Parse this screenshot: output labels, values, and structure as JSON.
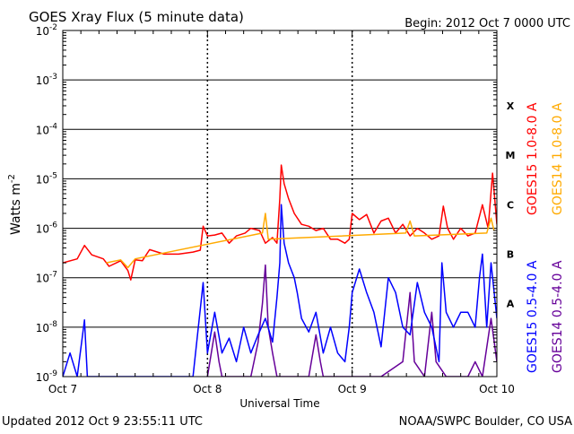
{
  "chart_data": {
    "type": "line",
    "title": "GOES Xray Flux (5 minute data)",
    "begin_label": "Begin:  2012 Oct 7  0000 UTC",
    "xlabel": "Universal Time",
    "ylabel": "Watts m",
    "ylabel_exponent": "-2",
    "y_scale": "log",
    "ylim": [
      1e-09,
      0.01
    ],
    "y_ticks": [
      {
        "mant": "10",
        "exp": "-2",
        "value": 0.01
      },
      {
        "mant": "10",
        "exp": "-3",
        "value": 0.001
      },
      {
        "mant": "10",
        "exp": "-4",
        "value": 0.0001
      },
      {
        "mant": "10",
        "exp": "-5",
        "value": 1e-05
      },
      {
        "mant": "10",
        "exp": "-6",
        "value": 1e-06
      },
      {
        "mant": "10",
        "exp": "-7",
        "value": 1e-07
      },
      {
        "mant": "10",
        "exp": "-8",
        "value": 1e-08
      },
      {
        "mant": "10",
        "exp": "-9",
        "value": 1e-09
      }
    ],
    "x_range_days": [
      0,
      3
    ],
    "x_ticks": [
      {
        "label": "Oct 7",
        "day": 0
      },
      {
        "label": "Oct 8",
        "day": 1
      },
      {
        "label": "Oct 9",
        "day": 2
      },
      {
        "label": "Oct 10",
        "day": 3
      }
    ],
    "flare_classes": [
      {
        "label": "X",
        "value": 0.0003
      },
      {
        "label": "M",
        "value": 3e-05
      },
      {
        "label": "C",
        "value": 3e-06
      },
      {
        "label": "B",
        "value": 3e-07
      },
      {
        "label": "A",
        "value": 3e-08
      }
    ],
    "grid": "horizontal",
    "legend_position": "right",
    "series": [
      {
        "name": "GOES15 1.0-8.0 A",
        "color": "#ff0000",
        "points": [
          [
            0.0,
            2e-07
          ],
          [
            0.1,
            2.4e-07
          ],
          [
            0.15,
            4.5e-07
          ],
          [
            0.2,
            2.9e-07
          ],
          [
            0.28,
            2.4e-07
          ],
          [
            0.32,
            1.7e-07
          ],
          [
            0.4,
            2.2e-07
          ],
          [
            0.45,
            1.4e-07
          ],
          [
            0.47,
            9e-08
          ],
          [
            0.5,
            2.3e-07
          ],
          [
            0.55,
            2.2e-07
          ],
          [
            0.6,
            3.7e-07
          ],
          [
            0.7,
            3e-07
          ],
          [
            0.8,
            3e-07
          ],
          [
            0.9,
            3.3e-07
          ],
          [
            0.95,
            3.6e-07
          ],
          [
            0.97,
            1.1e-06
          ],
          [
            1.0,
            7e-07
          ],
          [
            1.05,
            7.3e-07
          ],
          [
            1.1,
            8e-07
          ],
          [
            1.15,
            5e-07
          ],
          [
            1.2,
            7e-07
          ],
          [
            1.26,
            8e-07
          ],
          [
            1.3,
            1e-06
          ],
          [
            1.36,
            9e-07
          ],
          [
            1.4,
            5e-07
          ],
          [
            1.45,
            6.5e-07
          ],
          [
            1.48,
            5e-07
          ],
          [
            1.5,
            4e-06
          ],
          [
            1.51,
            1.9e-05
          ],
          [
            1.53,
            8e-06
          ],
          [
            1.56,
            4e-06
          ],
          [
            1.6,
            2e-06
          ],
          [
            1.65,
            1.2e-06
          ],
          [
            1.7,
            1.1e-06
          ],
          [
            1.75,
            9e-07
          ],
          [
            1.8,
            1e-06
          ],
          [
            1.85,
            6e-07
          ],
          [
            1.9,
            6e-07
          ],
          [
            1.95,
            5e-07
          ],
          [
            1.98,
            6e-07
          ],
          [
            2.0,
            2e-06
          ],
          [
            2.05,
            1.5e-06
          ],
          [
            2.1,
            1.9e-06
          ],
          [
            2.15,
            8e-07
          ],
          [
            2.2,
            1.4e-06
          ],
          [
            2.25,
            1.6e-06
          ],
          [
            2.3,
            8e-07
          ],
          [
            2.35,
            1.2e-06
          ],
          [
            2.4,
            7e-07
          ],
          [
            2.45,
            1e-06
          ],
          [
            2.5,
            8e-07
          ],
          [
            2.55,
            6e-07
          ],
          [
            2.6,
            7e-07
          ],
          [
            2.63,
            2.8e-06
          ],
          [
            2.66,
            1e-06
          ],
          [
            2.7,
            6e-07
          ],
          [
            2.75,
            1e-06
          ],
          [
            2.8,
            7e-07
          ],
          [
            2.85,
            8e-07
          ],
          [
            2.9,
            3e-06
          ],
          [
            2.94,
            1e-06
          ],
          [
            2.97,
            1.3e-05
          ],
          [
            3.0,
            1.2e-06
          ]
        ]
      },
      {
        "name": "GOES14 1.0-8.0 A",
        "color": "#ffaa00",
        "points": [
          [
            0.3,
            2e-07
          ],
          [
            0.4,
            2.3e-07
          ],
          [
            0.45,
            1.6e-07
          ],
          [
            0.5,
            2.4e-07
          ],
          [
            1.38,
            8e-07
          ],
          [
            1.4,
            2e-06
          ],
          [
            1.42,
            6e-07
          ],
          [
            2.37,
            8e-07
          ],
          [
            2.4,
            1.4e-06
          ],
          [
            2.43,
            7e-07
          ],
          [
            2.93,
            8e-07
          ],
          [
            2.96,
            1.6e-06
          ],
          [
            2.98,
            9e-07
          ]
        ]
      },
      {
        "name": "GOES15 0.5-4.0 A",
        "color": "#0000ff",
        "points": [
          [
            0.0,
            1e-09
          ],
          [
            0.05,
            3e-09
          ],
          [
            0.1,
            1e-09
          ],
          [
            0.15,
            1.4e-08
          ],
          [
            0.17,
            1e-09
          ],
          [
            0.3,
            1e-09
          ],
          [
            0.5,
            1e-09
          ],
          [
            0.7,
            1e-09
          ],
          [
            0.9,
            1e-09
          ],
          [
            0.97,
            8e-08
          ],
          [
            1.0,
            3e-09
          ],
          [
            1.05,
            2e-08
          ],
          [
            1.1,
            3e-09
          ],
          [
            1.15,
            6e-09
          ],
          [
            1.2,
            2e-09
          ],
          [
            1.25,
            1e-08
          ],
          [
            1.3,
            3e-09
          ],
          [
            1.35,
            7e-09
          ],
          [
            1.4,
            1.5e-08
          ],
          [
            1.45,
            5e-09
          ],
          [
            1.48,
            4e-08
          ],
          [
            1.5,
            2e-07
          ],
          [
            1.51,
            3e-06
          ],
          [
            1.53,
            5e-07
          ],
          [
            1.56,
            2e-07
          ],
          [
            1.6,
            1e-07
          ],
          [
            1.62,
            5e-08
          ],
          [
            1.65,
            1.5e-08
          ],
          [
            1.7,
            8e-09
          ],
          [
            1.75,
            2e-08
          ],
          [
            1.8,
            3e-09
          ],
          [
            1.85,
            1e-08
          ],
          [
            1.9,
            3e-09
          ],
          [
            1.95,
            2e-09
          ],
          [
            1.98,
            1e-08
          ],
          [
            2.0,
            5e-08
          ],
          [
            2.05,
            1.5e-07
          ],
          [
            2.1,
            5e-08
          ],
          [
            2.15,
            2e-08
          ],
          [
            2.2,
            4e-09
          ],
          [
            2.25,
            1e-07
          ],
          [
            2.3,
            5e-08
          ],
          [
            2.35,
            1e-08
          ],
          [
            2.4,
            7e-09
          ],
          [
            2.45,
            8e-08
          ],
          [
            2.5,
            2e-08
          ],
          [
            2.55,
            1e-08
          ],
          [
            2.6,
            2e-09
          ],
          [
            2.62,
            2e-07
          ],
          [
            2.65,
            2e-08
          ],
          [
            2.7,
            1e-08
          ],
          [
            2.75,
            2e-08
          ],
          [
            2.8,
            2e-08
          ],
          [
            2.85,
            1e-08
          ],
          [
            2.88,
            1e-07
          ],
          [
            2.9,
            3e-07
          ],
          [
            2.93,
            1e-08
          ],
          [
            2.96,
            2e-07
          ],
          [
            3.0,
            1.5e-08
          ]
        ]
      },
      {
        "name": "GOES14 0.5-4.0 A",
        "color": "#660099",
        "points": [
          [
            1.0,
            1e-09
          ],
          [
            1.05,
            8e-09
          ],
          [
            1.08,
            2e-09
          ],
          [
            1.1,
            1e-09
          ],
          [
            1.3,
            1e-09
          ],
          [
            1.35,
            5e-09
          ],
          [
            1.38,
            3e-08
          ],
          [
            1.4,
            1.8e-07
          ],
          [
            1.42,
            1e-08
          ],
          [
            1.45,
            3e-09
          ],
          [
            1.48,
            1e-09
          ],
          [
            1.7,
            1e-09
          ],
          [
            1.75,
            7e-09
          ],
          [
            1.78,
            2e-09
          ],
          [
            1.8,
            1e-09
          ],
          [
            2.0,
            1e-09
          ],
          [
            2.2,
            1e-09
          ],
          [
            2.35,
            2e-09
          ],
          [
            2.4,
            5e-08
          ],
          [
            2.43,
            2e-09
          ],
          [
            2.5,
            1e-09
          ],
          [
            2.55,
            2e-08
          ],
          [
            2.58,
            2e-09
          ],
          [
            2.65,
            1e-09
          ],
          [
            2.8,
            1e-09
          ],
          [
            2.85,
            2e-09
          ],
          [
            2.9,
            1e-09
          ],
          [
            2.96,
            1.5e-08
          ],
          [
            3.0,
            2e-09
          ]
        ]
      }
    ]
  },
  "footer": {
    "updated": "Updated 2012 Oct  9 23:55:11 UTC",
    "credit": "NOAA/SWPC Boulder, CO USA"
  }
}
